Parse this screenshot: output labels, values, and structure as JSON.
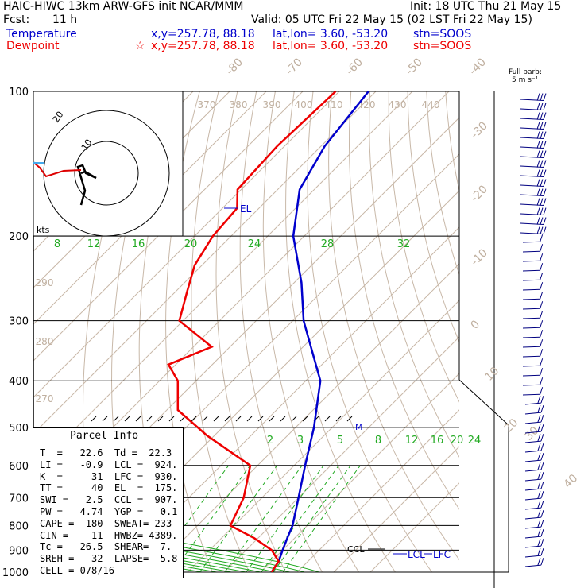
{
  "header": {
    "model_line": "HAIC-HIWC 13km ARW-GFS init   NCAR/MMM",
    "init_line": "Init: 18 UTC Thu 21 May 15",
    "fcst_label": "Fcst:",
    "fcst_value": "11 h",
    "valid_line": "Valid: 05 UTC Fri 22 May 15 (02 LST Fri 22 May 15)",
    "temperature_label": "Temperature",
    "temperature_xy": "x,y=257.78, 88.18",
    "temperature_latlon": "lat,lon=  3.60, -53.20",
    "temperature_stn": "stn=SOOS",
    "dewpoint_label": "Dewpoint",
    "dewpoint_star": "☆",
    "dewpoint_xy": "x,y=257.78, 88.18",
    "dewpoint_latlon": "lat,lon=  3.60, -53.20",
    "dewpoint_stn": "stn=SOOS"
  },
  "barb_legend": {
    "line1": "Full barb:",
    "line2": "5 m s⁻¹"
  },
  "colors": {
    "temperature": "#0000cc",
    "dewpoint": "#ee0000",
    "isotherm": "#c8b8a8",
    "mixing_ratio": "#22aa22",
    "isobar": "#000000",
    "barbs": "#000080",
    "label_grey": "#c0b0a0"
  },
  "parcel_info": {
    "title": "Parcel Info",
    "rows": [
      "T  =   22.6  Td =  22.3",
      "LI =   -0.9  LCL =  924.",
      "K  =     31  LFC =  930.",
      "TT =     40  EL  =  175.",
      "SWI =   2.5  CCL =  907.",
      "PW =   4.74  YGP =   0.1",
      "CAPE =  180  SWEAT= 233",
      "CIN =   -11  HWBZ= 4389.",
      "Tc =   26.5  SHEAR=  7.",
      "SREH =   32  LAPSE=  5.8",
      "CELL = 078/16"
    ]
  },
  "hodograph": {
    "ring_labels": [
      "20",
      "10"
    ],
    "axis_label": "kts"
  },
  "level_markers": {
    "el": "EL",
    "ccl": "CCL",
    "lcl": "LCL",
    "lfc": "LFC",
    "m": "M"
  },
  "chart_data": {
    "type": "line",
    "title": "",
    "xlabel": "",
    "ylabel": "",
    "y_scale": "log-pressure",
    "pressure_ticks": [
      100,
      200,
      300,
      400,
      500,
      600,
      700,
      800,
      900,
      1000
    ],
    "isotherm_labels": [
      "-80",
      "-70",
      "-60",
      "-50",
      "-40",
      "-30",
      "-20",
      "-10",
      "0",
      "10",
      "20",
      "30",
      "40"
    ],
    "theta_labels": [
      "370",
      "380",
      "390",
      "400",
      "410",
      "420",
      "430",
      "440",
      "290",
      "280",
      "270"
    ],
    "mixing_ratio_labels_top": [
      "8",
      "12",
      "16",
      "20",
      "24",
      "28",
      "32"
    ],
    "mixing_ratio_labels_bottom": [
      "2",
      "3",
      "5",
      "8",
      "12",
      "16",
      "20",
      "24"
    ],
    "series": [
      {
        "name": "Temperature",
        "points": [
          [
            100,
            -82
          ],
          [
            130,
            -79
          ],
          [
            160,
            -74
          ],
          [
            200,
            -63
          ],
          [
            250,
            -48
          ],
          [
            300,
            -37
          ],
          [
            400,
            -16
          ],
          [
            500,
            -5
          ],
          [
            600,
            3
          ],
          [
            700,
            10
          ],
          [
            800,
            16
          ],
          [
            850,
            18
          ],
          [
            900,
            20
          ],
          [
            950,
            22
          ],
          [
            1000,
            23
          ]
        ]
      },
      {
        "name": "Dewpoint",
        "points": [
          [
            100,
            -91
          ],
          [
            130,
            -92
          ],
          [
            160,
            -91
          ],
          [
            175,
            -86
          ],
          [
            200,
            -85
          ],
          [
            230,
            -82
          ],
          [
            260,
            -77
          ],
          [
            300,
            -71
          ],
          [
            340,
            -55
          ],
          [
            370,
            -62
          ],
          [
            400,
            -55
          ],
          [
            460,
            -47
          ],
          [
            520,
            -32
          ],
          [
            600,
            -12
          ],
          [
            700,
            -5
          ],
          [
            800,
            -1
          ],
          [
            850,
            9
          ],
          [
            900,
            17
          ],
          [
            950,
            22
          ],
          [
            1000,
            23
          ]
        ]
      }
    ],
    "grid": true,
    "legend": "top-left"
  }
}
